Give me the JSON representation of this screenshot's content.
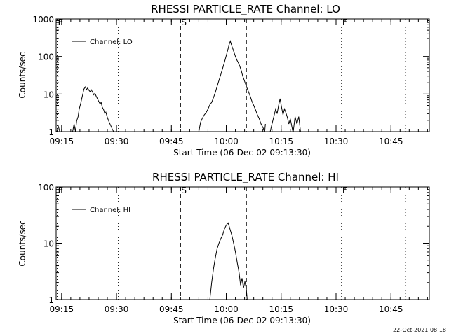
{
  "footer": {
    "timestamp": "22-Oct-2021 08:18"
  },
  "chart_data": [
    {
      "type": "line",
      "title": "RHESSI PARTICLE_RATE Channel: LO",
      "xlabel": "Start Time (06-Dec-02 09:13:30)",
      "ylabel": "Counts/sec",
      "yscale": "log",
      "ylim": [
        1,
        1000
      ],
      "xlim_minutes": [
        0,
        102
      ],
      "x_tick_minutes": [
        1.5,
        16.5,
        31.5,
        46.5,
        61.5,
        76.5,
        91.5
      ],
      "x_tick_labels": [
        "09:15",
        "09:30",
        "09:45",
        "10:00",
        "10:15",
        "10:30",
        "10:45"
      ],
      "y_ticks": [
        1,
        10,
        100,
        1000
      ],
      "y_tick_labels": [
        "1",
        "10",
        "100",
        "1000"
      ],
      "legend": "Channel: LO",
      "legend_position": "top-left",
      "markers": [
        {
          "label": "E",
          "minute": 0.3,
          "style": "dotted"
        },
        {
          "label": "",
          "minute": 17.0,
          "style": "dotted"
        },
        {
          "label": "S",
          "minute": 34.0,
          "style": "dashed"
        },
        {
          "label": "",
          "minute": 52.0,
          "style": "dashed"
        },
        {
          "label": "E",
          "minute": 78.0,
          "style": "dotted"
        },
        {
          "label": "",
          "minute": 95.5,
          "style": "dotted"
        }
      ],
      "series": [
        {
          "name": "Channel: LO",
          "segments": [
            {
              "x": [
                0.2,
                0.6,
                1.0,
                1.3
              ],
              "y": [
                1.0,
                1.4,
                1.0,
                1.0
              ]
            },
            {
              "x": [
                4.5,
                4.9,
                5.3,
                5.6,
                6.0,
                6.3,
                6.7,
                7.0,
                7.3,
                7.6,
                8.0,
                8.3,
                8.6,
                9.0,
                9.3,
                9.6,
                10.0,
                10.3,
                10.6,
                11.0,
                11.3,
                11.6,
                12.0,
                12.3,
                12.6,
                13.0,
                13.3,
                13.6,
                14.0,
                14.3,
                14.6,
                15.0,
                15.3,
                15.7
              ],
              "y": [
                1.0,
                1.6,
                1.0,
                1.9,
                2.5,
                4.0,
                5.5,
                7.5,
                10.0,
                13.5,
                15.5,
                13.0,
                14.5,
                12.5,
                11.5,
                13.0,
                11.0,
                9.5,
                10.5,
                8.5,
                7.5,
                6.5,
                5.5,
                6.0,
                4.5,
                3.8,
                3.0,
                3.3,
                2.4,
                2.0,
                1.7,
                1.4,
                1.2,
                1.0
              ]
            },
            {
              "x": [
                39.0,
                39.5,
                40.0,
                40.5,
                41.0,
                41.5,
                42.0,
                42.5,
                43.0,
                43.5,
                44.0,
                44.5,
                45.0,
                45.5,
                46.0,
                46.5,
                47.0,
                47.3,
                47.6,
                48.0,
                48.3,
                48.6,
                49.0,
                49.4,
                49.8,
                50.2,
                50.6,
                51.0,
                51.5,
                52.0,
                52.5,
                53.0,
                53.5,
                54.0,
                54.5,
                55.0,
                55.5,
                56.0,
                56.5,
                57.0,
                57.2
              ],
              "y": [
                1.0,
                1.8,
                2.3,
                2.8,
                3.2,
                4.0,
                5.2,
                6.0,
                8.0,
                11.0,
                16.0,
                23.0,
                33.0,
                48.0,
                70.0,
                105.0,
                160.0,
                210.0,
                255.0,
                190.0,
                160.0,
                130.0,
                100.0,
                80.0,
                68.0,
                55.0,
                42.0,
                30.0,
                22.0,
                16.0,
                12.0,
                9.0,
                6.5,
                5.0,
                3.8,
                2.8,
                2.2,
                1.6,
                1.3,
                1.0,
                1.6
              ]
            },
            {
              "x": [
                58.5,
                59.0,
                59.5,
                60.0,
                60.4,
                60.8,
                61.2,
                61.6,
                62.0,
                62.4,
                62.8,
                63.2,
                63.6,
                64.0,
                64.4,
                64.7
              ],
              "y": [
                1.0,
                1.6,
                2.5,
                4.0,
                3.0,
                5.0,
                7.5,
                4.5,
                2.8,
                4.0,
                3.2,
                2.4,
                1.6,
                2.2,
                1.4,
                1.0
              ]
            },
            {
              "x": [
                64.8,
                65.3,
                65.8,
                66.3,
                66.8
              ],
              "y": [
                1.0,
                2.5,
                1.6,
                2.5,
                1.0
              ]
            }
          ]
        }
      ]
    },
    {
      "type": "line",
      "title": "RHESSI PARTICLE_RATE Channel: HI",
      "xlabel": "Start Time (06-Dec-02 09:13:30)",
      "ylabel": "Counts/sec",
      "yscale": "log",
      "ylim": [
        1,
        100
      ],
      "xlim_minutes": [
        0,
        102
      ],
      "x_tick_minutes": [
        1.5,
        16.5,
        31.5,
        46.5,
        61.5,
        76.5,
        91.5
      ],
      "x_tick_labels": [
        "09:15",
        "09:30",
        "09:45",
        "10:00",
        "10:15",
        "10:30",
        "10:45"
      ],
      "y_ticks": [
        1,
        10,
        100
      ],
      "y_tick_labels": [
        "1",
        "10",
        "100"
      ],
      "legend": "Channel: HI",
      "legend_position": "top-left",
      "markers": [
        {
          "label": "E",
          "minute": 0.3,
          "style": "dotted"
        },
        {
          "label": "",
          "minute": 17.0,
          "style": "dotted"
        },
        {
          "label": "S",
          "minute": 34.0,
          "style": "dashed"
        },
        {
          "label": "",
          "minute": 52.0,
          "style": "dashed"
        },
        {
          "label": "E",
          "minute": 78.0,
          "style": "dotted"
        },
        {
          "label": "",
          "minute": 95.5,
          "style": "dotted"
        }
      ],
      "series": [
        {
          "name": "Channel: HI",
          "segments": [
            {
              "x": [
                42.0,
                42.5,
                43.0,
                43.5,
                44.0,
                44.5,
                45.0,
                45.5,
                46.0,
                46.5,
                47.0,
                47.3,
                47.6,
                48.0,
                48.5,
                49.0,
                49.5,
                50.0,
                50.4,
                50.8,
                51.2,
                51.6,
                52.0,
                52.2
              ],
              "y": [
                1.0,
                2.0,
                3.5,
                5.5,
                8.0,
                10.0,
                12.0,
                14.0,
                18.0,
                21.0,
                23.0,
                20.0,
                17.0,
                14.0,
                10.0,
                7.0,
                4.5,
                3.0,
                1.8,
                2.4,
                1.6,
                2.1,
                1.5,
                1.0
              ]
            }
          ]
        }
      ]
    }
  ]
}
